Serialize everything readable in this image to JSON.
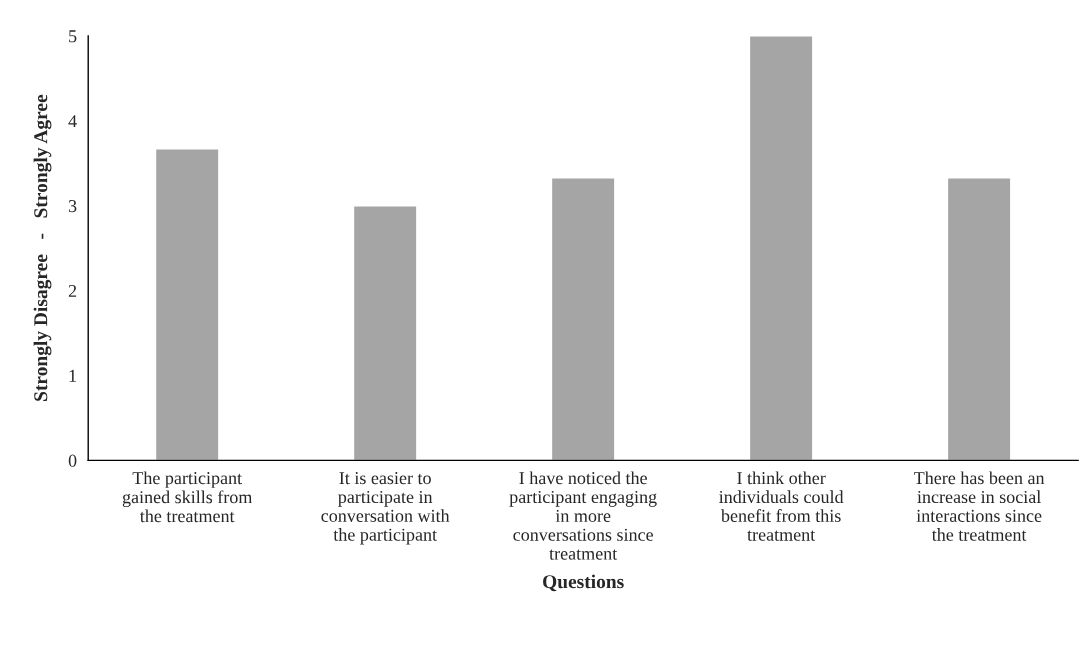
{
  "chart_data": {
    "type": "bar",
    "xlabel": "Questions",
    "ylabel": "Strongly Disagree   -   Strongly Agree",
    "categories": [
      "The participant\ngained skills from\nthe treatment",
      "It is easier to\nparticipate in\nconversation with\nthe participant",
      "I have noticed the\nparticipant engaging\nin more\nconversations since\ntreatment",
      "I think other\nindividuals could\nbenefit from this\ntreatment",
      "There has been an\nincrease in social\ninteractions since\nthe treatment"
    ],
    "values": [
      3.67,
      3.0,
      3.33,
      5.0,
      3.33
    ],
    "color": "#a5a5a5",
    "ylim": [
      0,
      5
    ],
    "yticks": [
      0,
      1,
      2,
      3,
      4,
      5
    ],
    "grid": false,
    "legend": false
  }
}
